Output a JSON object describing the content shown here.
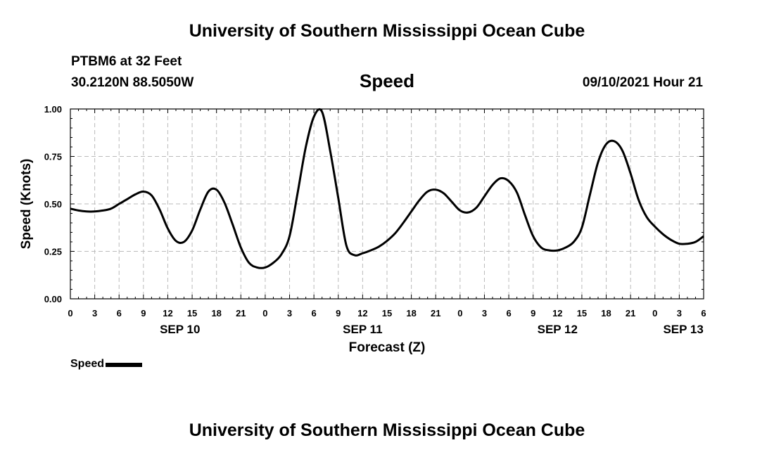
{
  "header": {
    "title": "University of Southern Mississippi Ocean Cube",
    "station": "PTBM6 at 32 Feet",
    "coordinates": "30.2120N  88.5050W",
    "run_time": "09/10/2021 Hour 21"
  },
  "footer": {
    "title": "University of Southern Mississippi Ocean Cube"
  },
  "legend": {
    "label": "Speed",
    "color": "#000000"
  },
  "chart_data": {
    "type": "line",
    "title": "Speed",
    "xlabel": "Forecast (Z)",
    "ylabel": "Speed (Knots)",
    "xlim": [
      0,
      78
    ],
    "ylim": [
      0,
      1.0
    ],
    "grid": true,
    "x_unit": "forecast hours from SEP 10 00Z",
    "x_ticks": [
      {
        "x": 0,
        "label": "0"
      },
      {
        "x": 3,
        "label": "3"
      },
      {
        "x": 6,
        "label": "6"
      },
      {
        "x": 9,
        "label": "9"
      },
      {
        "x": 12,
        "label": "12"
      },
      {
        "x": 15,
        "label": "15"
      },
      {
        "x": 18,
        "label": "18"
      },
      {
        "x": 21,
        "label": "21"
      },
      {
        "x": 24,
        "label": "0"
      },
      {
        "x": 27,
        "label": "3"
      },
      {
        "x": 30,
        "label": "6"
      },
      {
        "x": 33,
        "label": "9"
      },
      {
        "x": 36,
        "label": "12"
      },
      {
        "x": 39,
        "label": "15"
      },
      {
        "x": 42,
        "label": "18"
      },
      {
        "x": 45,
        "label": "21"
      },
      {
        "x": 48,
        "label": "0"
      },
      {
        "x": 51,
        "label": "3"
      },
      {
        "x": 54,
        "label": "6"
      },
      {
        "x": 57,
        "label": "9"
      },
      {
        "x": 60,
        "label": "12"
      },
      {
        "x": 63,
        "label": "15"
      },
      {
        "x": 66,
        "label": "18"
      },
      {
        "x": 69,
        "label": "21"
      },
      {
        "x": 72,
        "label": "0"
      },
      {
        "x": 75,
        "label": "3"
      },
      {
        "x": 78,
        "label": "6"
      }
    ],
    "y_ticks": [
      {
        "y": 0,
        "label": "0.00"
      },
      {
        "y": 0.25,
        "label": "0.25"
      },
      {
        "y": 0.5,
        "label": "0.50"
      },
      {
        "y": 0.75,
        "label": "0.75"
      },
      {
        "y": 1.0,
        "label": "1.00"
      }
    ],
    "date_labels": [
      {
        "x": 13.5,
        "label": "SEP 10"
      },
      {
        "x": 36,
        "label": "SEP 11"
      },
      {
        "x": 60,
        "label": "SEP 12"
      },
      {
        "x": 75.5,
        "label": "SEP 13"
      }
    ],
    "series": [
      {
        "name": "Speed",
        "color": "#000000",
        "x": [
          0,
          1,
          2,
          3,
          4,
          5,
          6,
          7,
          8,
          9,
          10,
          11,
          12,
          13,
          14,
          15,
          16,
          17,
          18,
          19,
          20,
          21,
          22,
          23,
          24,
          25,
          26,
          27,
          28,
          29,
          30,
          31,
          32,
          33,
          34,
          35,
          36,
          37,
          38,
          39,
          40,
          41,
          42,
          43,
          44,
          45,
          46,
          47,
          48,
          49,
          50,
          51,
          52,
          53,
          54,
          55,
          56,
          57,
          58,
          59,
          60,
          61,
          62,
          63,
          64,
          65,
          66,
          67,
          68,
          69,
          70,
          71,
          72,
          73,
          74,
          75,
          76,
          77,
          78
        ],
        "values": [
          0.475,
          0.465,
          0.46,
          0.46,
          0.465,
          0.475,
          0.5,
          0.525,
          0.55,
          0.565,
          0.545,
          0.47,
          0.37,
          0.305,
          0.3,
          0.36,
          0.47,
          0.565,
          0.575,
          0.505,
          0.39,
          0.27,
          0.19,
          0.165,
          0.165,
          0.19,
          0.235,
          0.33,
          0.56,
          0.8,
          0.96,
          0.985,
          0.78,
          0.53,
          0.28,
          0.23,
          0.24,
          0.255,
          0.275,
          0.305,
          0.345,
          0.4,
          0.46,
          0.52,
          0.565,
          0.575,
          0.555,
          0.51,
          0.465,
          0.455,
          0.48,
          0.54,
          0.6,
          0.635,
          0.62,
          0.56,
          0.44,
          0.33,
          0.27,
          0.255,
          0.255,
          0.27,
          0.3,
          0.375,
          0.55,
          0.72,
          0.815,
          0.83,
          0.78,
          0.66,
          0.52,
          0.43,
          0.38,
          0.34,
          0.31,
          0.29,
          0.29,
          0.3,
          0.33
        ]
      }
    ]
  }
}
